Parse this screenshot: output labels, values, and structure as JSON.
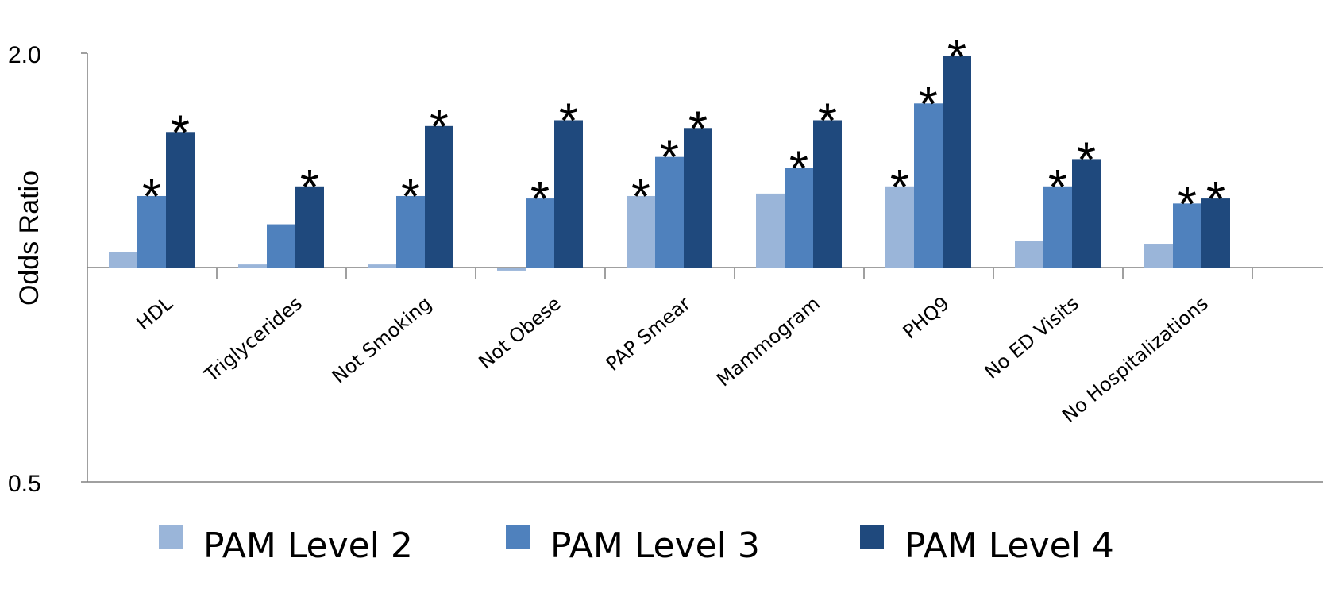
{
  "chart_data": {
    "type": "bar",
    "ylabel": "Odds Ratio",
    "yscale": "log",
    "ylim": [
      0.5,
      2.0
    ],
    "yticks": [
      0.5,
      2.0
    ],
    "ytick_labels": [
      "0.5",
      "2.0"
    ],
    "baseline": 1.0,
    "grid": false,
    "legend_position": "bottom",
    "categories": [
      "HDL",
      "Triglycerides",
      "Not Smoking",
      "Not Obese",
      "PAP Smear",
      "Mammogram",
      "PHQ9",
      "No ED Visits",
      "No Hospitalizations"
    ],
    "series": [
      {
        "name": "PAM Level 2",
        "color": "#9ab5d9",
        "values": [
          1.05,
          1.01,
          1.01,
          0.99,
          1.26,
          1.27,
          1.3,
          1.09,
          1.08
        ]
      },
      {
        "name": "PAM Level 3",
        "color": "#4f81bd",
        "values": [
          1.26,
          1.15,
          1.26,
          1.25,
          1.43,
          1.38,
          1.7,
          1.3,
          1.23
        ]
      },
      {
        "name": "PAM Level 4",
        "color": "#1f497d",
        "values": [
          1.55,
          1.3,
          1.58,
          1.61,
          1.57,
          1.61,
          1.98,
          1.42,
          1.25
        ]
      }
    ],
    "significance_marker": "*",
    "significant": [
      [
        false,
        true,
        true
      ],
      [
        false,
        false,
        true
      ],
      [
        false,
        true,
        true
      ],
      [
        false,
        true,
        true
      ],
      [
        true,
        true,
        true
      ],
      [
        false,
        true,
        true
      ],
      [
        true,
        true,
        true
      ],
      [
        false,
        true,
        true
      ],
      [
        false,
        true,
        true
      ]
    ],
    "marker_color": "#ff0000"
  }
}
